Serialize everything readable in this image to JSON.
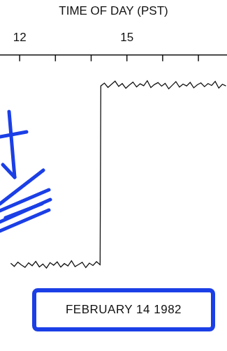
{
  "chart_data": {
    "type": "line",
    "x_label": "TIME OF DAY (PST)",
    "annotation": "FEBRUARY 14 1982",
    "x": [
      11.75,
      11.85,
      11.95,
      12.05,
      12.15,
      12.25,
      12.35,
      12.45,
      12.55,
      12.65,
      12.75,
      12.85,
      12.95,
      13.05,
      13.15,
      13.25,
      13.35,
      13.45,
      13.55,
      13.65,
      13.75,
      13.85,
      13.95,
      14.05,
      14.15,
      14.25,
      14.27,
      14.37,
      14.47,
      14.57,
      14.67,
      14.77,
      14.87,
      14.97,
      15.07,
      15.17,
      15.27,
      15.37,
      15.47,
      15.57,
      15.67,
      15.77,
      15.87,
      15.97,
      16.07,
      16.17,
      16.27,
      16.37,
      16.47,
      16.57,
      16.67,
      16.77,
      16.87,
      16.97,
      17.07,
      17.17,
      17.27,
      17.37,
      17.47,
      17.57,
      17.67,
      17.77
    ],
    "values": [
      1.25,
      1.12,
      1.3,
      1.18,
      1.08,
      1.27,
      1.15,
      1.33,
      1.1,
      1.22,
      1.05,
      1.28,
      1.17,
      1.31,
      1.09,
      1.24,
      1.14,
      1.36,
      1.11,
      1.2,
      1.29,
      1.07,
      1.26,
      1.16,
      1.32,
      1.19,
      8.7,
      8.82,
      8.64,
      8.77,
      8.9,
      8.68,
      8.8,
      8.6,
      8.74,
      8.86,
      8.66,
      8.79,
      8.71,
      8.92,
      8.63,
      8.76,
      8.84,
      8.69,
      8.81,
      8.58,
      8.73,
      8.88,
      8.65,
      8.78,
      8.7,
      8.85,
      8.62,
      8.75,
      8.83,
      8.67,
      8.8,
      8.72,
      8.89,
      8.61,
      8.77,
      8.7
    ],
    "color": "#111111",
    "xlim": [
      11.45,
      17.8
    ],
    "xticks": [
      12,
      {
        "value": 13,
        "label": null
      },
      {
        "value": 14,
        "label": null
      },
      15,
      {
        "value": 16,
        "label": null
      },
      {
        "value": 17,
        "label": null
      }
    ],
    "ylim": [
      0,
      10
    ],
    "grid": false,
    "tick_labels": "x"
  }
}
